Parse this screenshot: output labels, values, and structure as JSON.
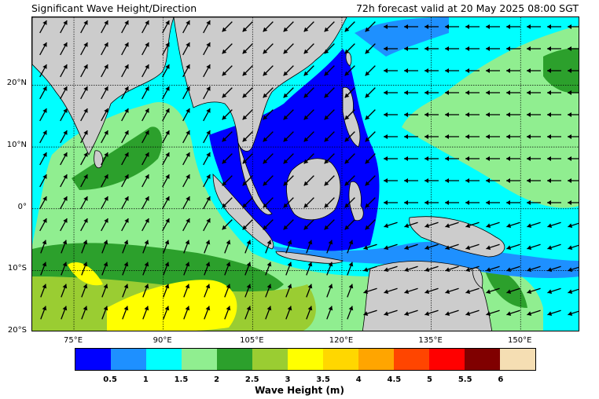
{
  "header": {
    "title_left": "Significant Wave Height/Direction",
    "title_right": "72h forecast valid at 20 May 2025 08:00 SGT"
  },
  "map": {
    "lon_range": [
      68,
      160
    ],
    "lat_range": [
      -20,
      31
    ],
    "lat_labels": [
      {
        "lat": 20,
        "text": "20°N"
      },
      {
        "lat": 10,
        "text": "10°N"
      },
      {
        "lat": 0,
        "text": "0°"
      },
      {
        "lat": -10,
        "text": "10°S"
      },
      {
        "lat": -20,
        "text": "20°S"
      }
    ],
    "lon_labels": [
      {
        "lon": 75,
        "text": "75°E"
      },
      {
        "lon": 90,
        "text": "90°E"
      },
      {
        "lon": 105,
        "text": "105°E"
      },
      {
        "lon": 120,
        "text": "120°E"
      },
      {
        "lon": 135,
        "text": "135°E"
      },
      {
        "lon": 150,
        "text": "150°E"
      }
    ],
    "land_color": "#cccccc",
    "gridlines": "dotted"
  },
  "colorbar": {
    "title": "Wave Height (m)",
    "colors": [
      "#0000ff",
      "#1e90ff",
      "#00ffff",
      "#90ee90",
      "#2ca02c",
      "#9acd32",
      "#ffff00",
      "#ffd700",
      "#ffa500",
      "#ff4500",
      "#ff0000",
      "#800000",
      "#f5deb3"
    ],
    "ticks": [
      "0.5",
      "1",
      "1.5",
      "2",
      "2.5",
      "3",
      "3.5",
      "4",
      "4.5",
      "5",
      "5.5",
      "6"
    ]
  }
}
